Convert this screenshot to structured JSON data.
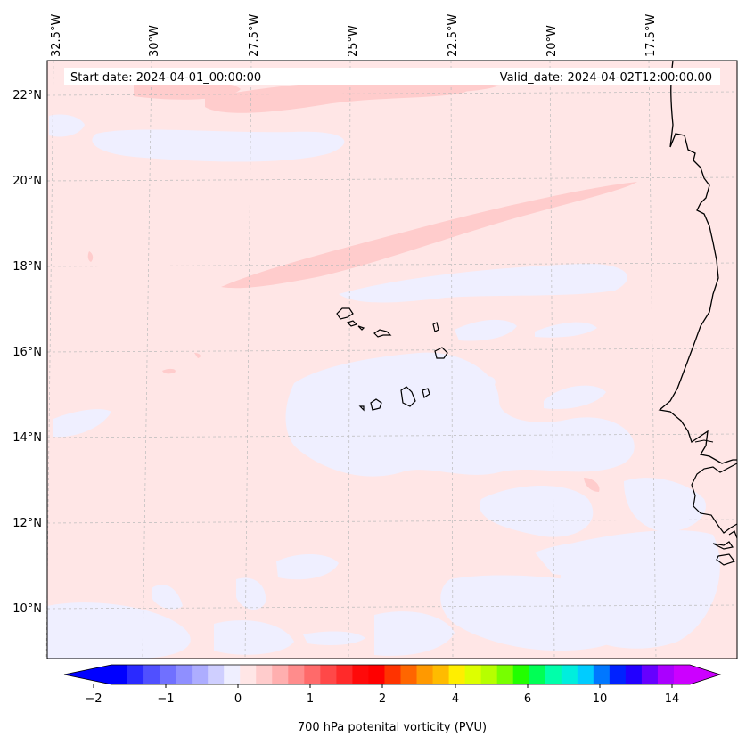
{
  "header": {
    "start_date": "Start date: 2024-04-01_00:00:00",
    "valid_date": "Valid_date: 2024-04-02T12:00:00.00"
  },
  "longitude_labels": [
    "32.5°W",
    "30°W",
    "27.5°W",
    "25°W",
    "22.5°W",
    "20°W",
    "17.5°W"
  ],
  "latitude_labels": [
    "22°N",
    "20°N",
    "18°N",
    "16°N",
    "14°N",
    "12°N",
    "10°N"
  ],
  "colorbar": {
    "label": "700 hPa potenital vorticity (PVU)",
    "ticks": [
      "−2",
      "−1",
      "0",
      "1",
      "2",
      "4",
      "6",
      "10",
      "14"
    ],
    "colors": [
      "#0000ff",
      "#2a2aff",
      "#5050ff",
      "#7070ff",
      "#8f8fff",
      "#adadff",
      "#cfcfff",
      "#efefff",
      "#ffe6e6",
      "#ffcccc",
      "#ffafaf",
      "#ff8c8c",
      "#ff6a6a",
      "#ff4848",
      "#ff2a2a",
      "#ff0a0a",
      "#ff0000",
      "#ff3300",
      "#ff6600",
      "#ff9900",
      "#ffbb00",
      "#ffee00",
      "#ddff00",
      "#b6ff00",
      "#77ff00",
      "#22ff00",
      "#00ff55",
      "#00ffaa",
      "#00eedd",
      "#00ccff",
      "#0077ff",
      "#0022ff",
      "#2200ff",
      "#6600ff",
      "#aa00ff",
      "#cc00ff"
    ],
    "extend_low_color": "#0000ff",
    "extend_high_color": "#cc00ff"
  },
  "field_colors": {
    "background": "#ffe6e6",
    "low_pv": "#efefff",
    "high_pv": "#ffcccc",
    "coastline": "#000000",
    "grid": "#bbbbbb"
  }
}
